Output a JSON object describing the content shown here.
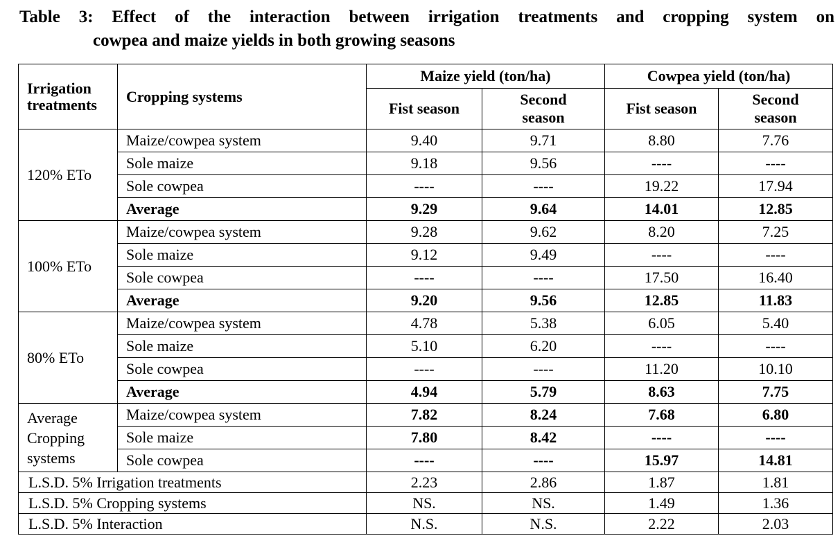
{
  "title": {
    "line1": "Table 3: Effect of the interaction between irrigation treatments and cropping system on",
    "line2": "cowpea and maize yields in both growing seasons"
  },
  "headers": {
    "irrigation": [
      "Irrigation",
      "treatments"
    ],
    "cropping": "Cropping systems",
    "maize": "Maize yield (ton/ha)",
    "cowpea": "Cowpea yield (ton/ha)",
    "first": "Fist season",
    "second": [
      "Second",
      "season"
    ]
  },
  "groups": [
    {
      "label": "120% ETo",
      "rows": [
        {
          "system": "Maize/cowpea system",
          "v": [
            "9.40",
            "9.71",
            "8.80",
            "7.76"
          ],
          "bold": false
        },
        {
          "system": "Sole maize",
          "v": [
            "9.18",
            "9.56",
            "----",
            "----"
          ],
          "bold": false
        },
        {
          "system": "Sole cowpea",
          "v": [
            "----",
            "----",
            "19.22",
            "17.94"
          ],
          "bold": false
        },
        {
          "system": "Average",
          "v": [
            "9.29",
            "9.64",
            "14.01",
            "12.85"
          ],
          "bold": true
        }
      ]
    },
    {
      "label": "100% ETo",
      "rows": [
        {
          "system": "Maize/cowpea system",
          "v": [
            "9.28",
            "9.62",
            "8.20",
            "7.25"
          ],
          "bold": false
        },
        {
          "system": "Sole maize",
          "v": [
            "9.12",
            "9.49",
            "----",
            "----"
          ],
          "bold": false
        },
        {
          "system": "Sole cowpea",
          "v": [
            "----",
            "----",
            "17.50",
            "16.40"
          ],
          "bold": false
        },
        {
          "system": "Average",
          "v": [
            "9.20",
            "9.56",
            "12.85",
            "11.83"
          ],
          "bold": true
        }
      ]
    },
    {
      "label": "80% ETo",
      "rows": [
        {
          "system": "Maize/cowpea system",
          "v": [
            "4.78",
            "5.38",
            "6.05",
            "5.40"
          ],
          "bold": false
        },
        {
          "system": "Sole maize",
          "v": [
            "5.10",
            "6.20",
            "----",
            "----"
          ],
          "bold": false
        },
        {
          "system": "Sole cowpea",
          "v": [
            "----",
            "----",
            "11.20",
            "10.10"
          ],
          "bold": false
        },
        {
          "system": "Average",
          "v": [
            "4.94",
            "5.79",
            "8.63",
            "7.75"
          ],
          "bold": true
        }
      ]
    },
    {
      "label": "Average Cropping systems",
      "rows": [
        {
          "system": "Maize/cowpea system",
          "v": [
            "7.82",
            "8.24",
            "7.68",
            "6.80"
          ],
          "bold_values": true
        },
        {
          "system": "Sole maize",
          "v": [
            "7.80",
            "8.42",
            "----",
            "----"
          ],
          "bold_values": true
        },
        {
          "system": "Sole cowpea",
          "v": [
            "----",
            "----",
            "15.97",
            "14.81"
          ],
          "bold_values": true
        }
      ]
    }
  ],
  "lsd": [
    {
      "label": "L.S.D. 5%  Irrigation treatments",
      "v": [
        "2.23",
        "2.86",
        "1.87",
        "1.81"
      ]
    },
    {
      "label": "L.S.D. 5%  Cropping systems",
      "v": [
        "NS.",
        "NS.",
        "1.49",
        "1.36"
      ]
    },
    {
      "label": "L.S.D. 5%  Interaction",
      "v": [
        "N.S.",
        "N.S.",
        "2.22",
        "2.03"
      ]
    }
  ]
}
